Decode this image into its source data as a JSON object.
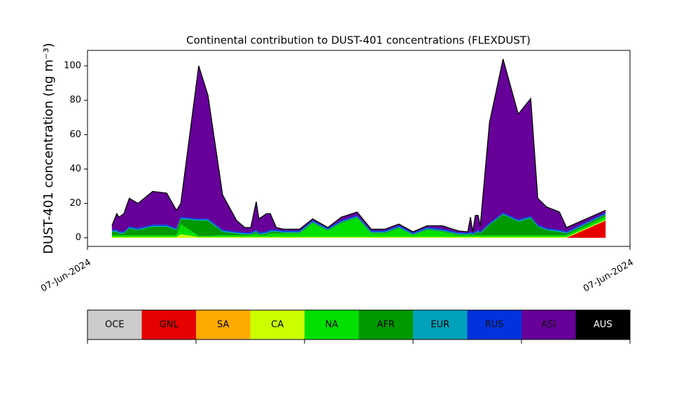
{
  "chart_data": {
    "type": "stacked_area",
    "title": "Continental contribution to DUST-401 concentrations (FLEXDUST)",
    "ylabel": "DUST-401 concentration (ng m⁻³)",
    "xlim": [
      0,
      100
    ],
    "xticks": [
      {
        "value": 0,
        "label": "07-Jun-2024"
      },
      {
        "value": 100,
        "label": "07-Jun-2024"
      }
    ],
    "ylim": [
      -5,
      109
    ],
    "yticks": [
      0,
      20,
      40,
      60,
      80,
      100
    ],
    "x": [
      4.5,
      5.4,
      5.8,
      6.7,
      7.7,
      9.3,
      12.0,
      14.6,
      16.4,
      17.2,
      20.5,
      22.2,
      24.9,
      27.5,
      29.0,
      30.1,
      31.1,
      31.6,
      33.0,
      33.7,
      34.8,
      36.1,
      39.1,
      41.5,
      44.3,
      46.8,
      49.7,
      52.3,
      54.8,
      57.4,
      60.0,
      62.6,
      65.4,
      68.4,
      70.1,
      70.6,
      71.0,
      71.5,
      72.0,
      72.4,
      74.1,
      76.6,
      79.4,
      81.7,
      83.0,
      84.6,
      87.0,
      88.3,
      95.5
    ],
    "series": [
      {
        "name": "OCE",
        "color": "#cccccc",
        "values": [
          0,
          0,
          0,
          0,
          0,
          0,
          0,
          0,
          0,
          0,
          0,
          0,
          0,
          0,
          0,
          0,
          0,
          0,
          0,
          0,
          0,
          0,
          0,
          0,
          0,
          0,
          0,
          0,
          0,
          0,
          0,
          0,
          0,
          0,
          0,
          0,
          0,
          0,
          0,
          0,
          0,
          0,
          0,
          0,
          0,
          0,
          0,
          0,
          0
        ]
      },
      {
        "name": "GNL",
        "color": "#e60000",
        "values": [
          0,
          0,
          0,
          0,
          0,
          0,
          0,
          0,
          0,
          0,
          0,
          0,
          0,
          0,
          0,
          0,
          0,
          0,
          0,
          0,
          0,
          0,
          0,
          0,
          0,
          0,
          0,
          0,
          0,
          0,
          0,
          0,
          0,
          0,
          0,
          0,
          0,
          0,
          0,
          0,
          0,
          0,
          0,
          0,
          0,
          0,
          0,
          0,
          10
        ]
      },
      {
        "name": "SA",
        "color": "#ffaa00",
        "values": [
          0,
          0,
          0,
          0,
          0,
          0,
          0,
          0,
          0,
          0,
          0,
          0,
          0,
          0,
          0,
          0,
          0,
          0,
          0,
          0,
          0,
          0,
          0,
          0,
          0,
          0,
          0,
          0,
          0,
          0,
          0,
          0,
          0,
          0,
          0,
          0,
          0,
          0,
          0,
          0,
          0,
          0,
          0,
          0,
          0,
          0,
          0,
          0,
          0
        ]
      },
      {
        "name": "CA",
        "color": "#ccff00",
        "values": [
          0.5,
          0.5,
          0.5,
          0.5,
          0.5,
          0.5,
          0.5,
          0.5,
          0.5,
          2,
          0.5,
          0.5,
          0.5,
          0.5,
          0.5,
          0.5,
          0.5,
          0.5,
          0.5,
          0.5,
          0.5,
          0.5,
          0.5,
          0.5,
          0.5,
          0.5,
          0.5,
          0.5,
          0.5,
          0.5,
          0.5,
          0.5,
          0.5,
          0.5,
          0.5,
          0.5,
          0.5,
          0.5,
          0.5,
          0.5,
          0.5,
          0.5,
          0.5,
          0.5,
          0.5,
          0.5,
          0.5,
          0.5,
          0.5
        ]
      },
      {
        "name": "NA",
        "color": "#00e000",
        "values": [
          1,
          1,
          1,
          1,
          1,
          1,
          1,
          1,
          1,
          6,
          0.5,
          0.5,
          1,
          1,
          1,
          1,
          2,
          1,
          1,
          2,
          2,
          2,
          2,
          8,
          3.5,
          8,
          11,
          2,
          2,
          5,
          1,
          4,
          3,
          1,
          1,
          1,
          1,
          1,
          1,
          1,
          1,
          1,
          1,
          1,
          1,
          1,
          1,
          1,
          2
        ]
      },
      {
        "name": "AFR",
        "color": "#009900",
        "values": [
          2,
          2,
          1,
          1,
          4,
          3,
          5,
          5,
          3,
          3,
          9,
          9,
          2,
          1,
          0.5,
          0.5,
          1,
          0.5,
          1,
          1,
          1,
          0.5,
          0.5,
          0.5,
          0.5,
          0.5,
          0.5,
          0.5,
          0.5,
          0.5,
          0.3,
          0.5,
          0.5,
          0.5,
          0.3,
          1,
          0.3,
          1,
          2,
          1,
          6,
          12,
          8,
          10,
          5,
          3,
          2,
          1,
          1
        ]
      },
      {
        "name": "EUR",
        "color": "#00a2bb",
        "values": [
          0.5,
          0.5,
          0.5,
          0.5,
          0.5,
          0.5,
          0.5,
          0.5,
          0.5,
          0.5,
          0.5,
          0.5,
          0.5,
          0.5,
          0.5,
          0.5,
          0.5,
          0.5,
          0.5,
          0.5,
          0.5,
          0.5,
          0.5,
          0.5,
          0.5,
          0.5,
          0.5,
          0.5,
          0.5,
          0.5,
          0.5,
          0.5,
          0.5,
          0.5,
          0.5,
          0.5,
          0.5,
          0.5,
          0.5,
          0.5,
          0.5,
          0.5,
          0.5,
          0.5,
          0.5,
          0.5,
          0.5,
          0.5,
          0.5
        ]
      },
      {
        "name": "RUS",
        "color": "#0033dd",
        "values": [
          0.7,
          0.7,
          0.7,
          0.7,
          0.7,
          0.7,
          0.7,
          0.7,
          0.7,
          0.7,
          0.7,
          0.7,
          0.7,
          0.7,
          0.7,
          0.7,
          0.7,
          0.7,
          0.7,
          0.7,
          0.7,
          0.7,
          0.7,
          0.7,
          0.7,
          0.7,
          0.7,
          0.7,
          0.7,
          0.7,
          0.7,
          0.7,
          0.7,
          0.7,
          0.7,
          0.7,
          0.7,
          0.7,
          0.7,
          0.7,
          0.7,
          0.7,
          0.7,
          0.7,
          0.7,
          0.7,
          0.7,
          0.7,
          0.7
        ]
      },
      {
        "name": "ASI",
        "color": "#660099",
        "values": [
          2.3,
          9.3,
          8.3,
          10.3,
          16.3,
          14.3,
          19.3,
          18.3,
          10.3,
          7.8,
          88.8,
          71.8,
          20.3,
          6.3,
          2.8,
          2.8,
          16.3,
          7.8,
          10.3,
          9.3,
          1.3,
          0.8,
          0.8,
          0.8,
          0.3,
          1.8,
          1.8,
          0.8,
          0.8,
          0.8,
          0.5,
          0.8,
          1.8,
          0.8,
          0.5,
          8.3,
          0.5,
          9.3,
          8.3,
          3.3,
          58.3,
          89.3,
          61.3,
          68.3,
          15.3,
          12.3,
          10.3,
          2.3,
          1.3
        ]
      },
      {
        "name": "AUS",
        "color": "#000000",
        "values": [
          0,
          0,
          0,
          0,
          0,
          0,
          0,
          0,
          0,
          0,
          0,
          0,
          0,
          0,
          0,
          0,
          0,
          0,
          0,
          0,
          0,
          0,
          0,
          0,
          0,
          0,
          0,
          0,
          0,
          0,
          0,
          0,
          0,
          0,
          0,
          0,
          0,
          0,
          0,
          0,
          0,
          0,
          0,
          0,
          0,
          0,
          0,
          0,
          0
        ]
      }
    ]
  }
}
